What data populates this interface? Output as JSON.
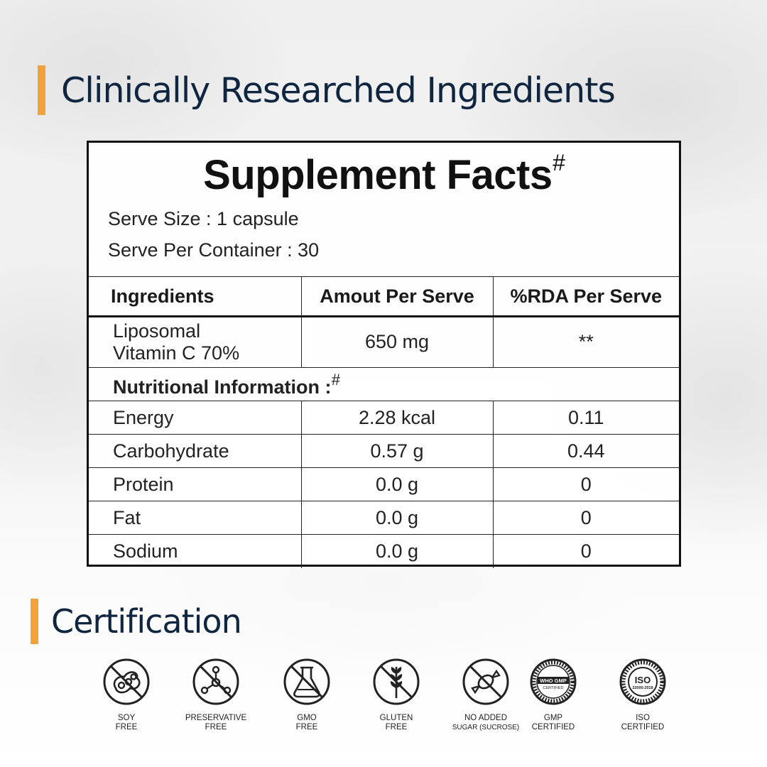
{
  "heading_ingredients": "Clinically Researched Ingredients",
  "heading_certification": "Certification",
  "facts": {
    "title": "Supplement Facts",
    "title_mark": "#",
    "serve_size": "Serve Size : 1 capsule",
    "serve_per_container": "Serve Per Container : 30",
    "columns": [
      "Ingredients",
      "Amout Per Serve",
      "%RDA Per Serve"
    ],
    "main_ingredient": {
      "name_line1": "Liposomal",
      "name_line2": "Vitamin C 70%",
      "amount": "650 mg",
      "rda": "**"
    },
    "nutrition_label": "Nutritional Information :",
    "nutrition_mark": "#",
    "rows": [
      {
        "name": "Energy",
        "amount": "2.28 kcal",
        "rda": "0.11"
      },
      {
        "name": "Carbohydrate",
        "amount": "0.57 g",
        "rda": "0.44"
      },
      {
        "name": "Protein",
        "amount": "0.0 g",
        "rda": "0"
      },
      {
        "name": "Fat",
        "amount": "0.0 g",
        "rda": "0"
      },
      {
        "name": "Sodium",
        "amount": "0.0 g",
        "rda": "0"
      }
    ]
  },
  "certifications": [
    {
      "line1": "SOY",
      "line2": "FREE",
      "icon": "soy-free-icon"
    },
    {
      "line1": "PRESERVATIVE",
      "line2": "FREE",
      "icon": "preservative-free-icon"
    },
    {
      "line1": "GMO",
      "line2": "FREE",
      "icon": "gmo-free-icon"
    },
    {
      "line1": "GLUTEN",
      "line2": "FREE",
      "icon": "gluten-free-icon"
    },
    {
      "line1": "NO ADDED",
      "line2": "SUGAR (SUCROSE)",
      "icon": "no-sugar-icon"
    },
    {
      "line1": "GMP",
      "line2": "CERTIFIED",
      "icon": "gmp-seal-icon"
    },
    {
      "line1": "ISO",
      "line2": "CERTIFIED",
      "icon": "iso-seal-icon"
    }
  ],
  "seals": {
    "gmp_text": "WHO GMP",
    "gmp_sub": "CERTIFIED",
    "iso_text": "ISO",
    "iso_sub": "22000:2018"
  },
  "colors": {
    "accent": "#f2a23a",
    "heading": "#0f2540"
  }
}
